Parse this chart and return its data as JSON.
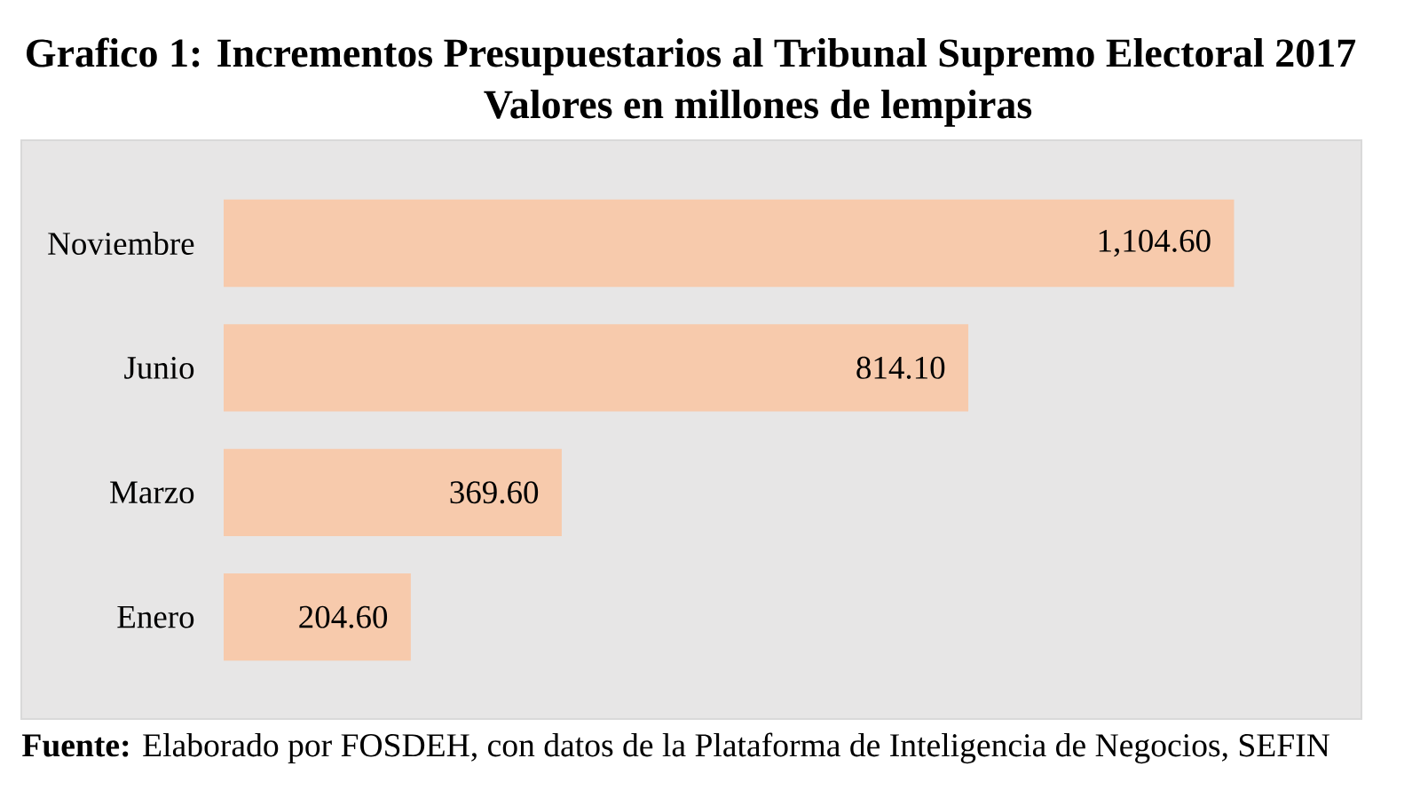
{
  "chart_data": {
    "type": "bar",
    "orientation": "horizontal",
    "title": "Grafico 1: Incrementos Presupuestarios al Tribunal Supremo Electoral 2017",
    "subtitle": "Valores en millones de lempiras",
    "categories": [
      "Noviembre",
      "Junio",
      "Marzo",
      "Enero"
    ],
    "values": [
      1104.6,
      814.1,
      369.6,
      204.6
    ],
    "value_labels": [
      "1,104.60",
      "814.10",
      "369.60",
      "204.60"
    ],
    "color": "#f7caac",
    "xlim": [
      0,
      1240
    ],
    "tick_labels": "y",
    "annotations": [
      "**Fuente:** Elaborado por FOSDEH, con datos de la Plataforma de Inteligencia de Negocios, SEFIN"
    ]
  }
}
